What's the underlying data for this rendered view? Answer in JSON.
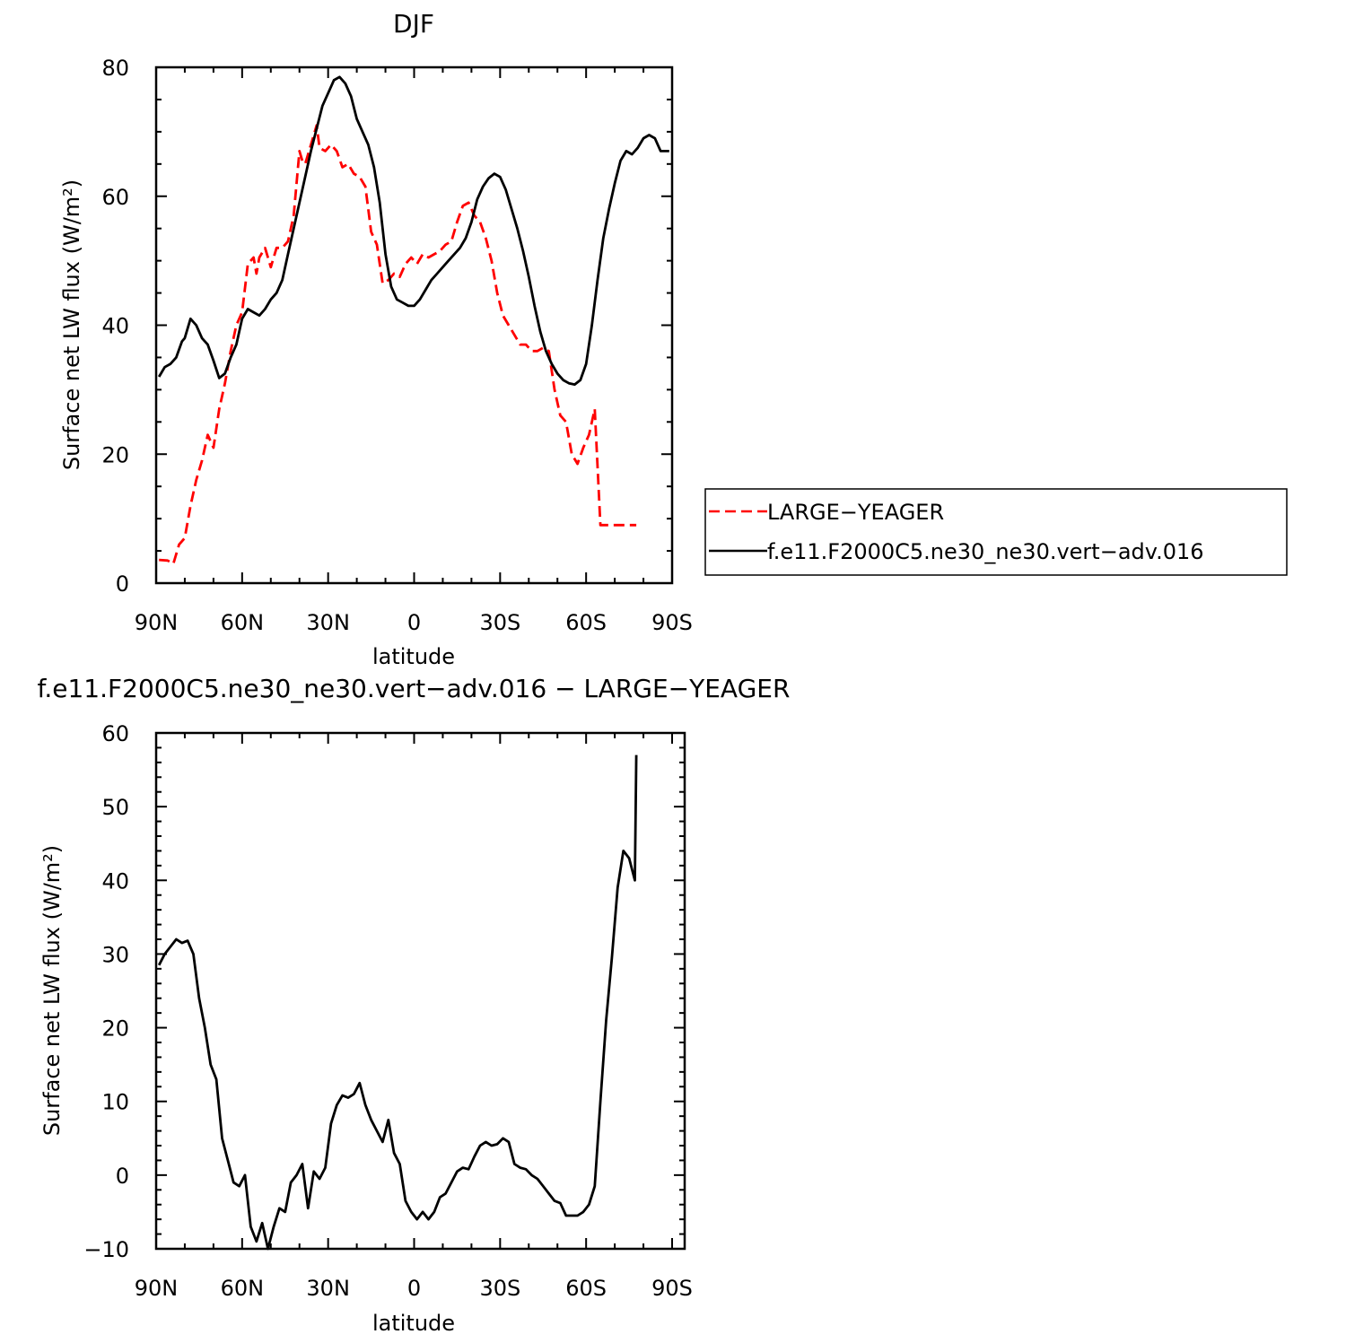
{
  "chart_data": [
    {
      "type": "line",
      "title": "DJF",
      "xlabel": "latitude",
      "ylabel": "Surface net LW flux (W/m²)",
      "xlim": [
        90,
        -90
      ],
      "ylim": [
        0,
        80
      ],
      "xticks": [
        90,
        60,
        30,
        0,
        -30,
        -60,
        -90
      ],
      "xtick_labels": [
        "90N",
        "60N",
        "30N",
        "0",
        "30S",
        "60S",
        "90S"
      ],
      "yticks": [
        0,
        20,
        40,
        60,
        80
      ],
      "ytick_labels": [
        "0",
        "20",
        "40",
        "60",
        "80"
      ],
      "legend_position": "right",
      "series": [
        {
          "name": "LARGE-YEAGER",
          "color": "#ff0000",
          "dash": "dashed",
          "x": [
            89,
            86,
            84,
            82,
            80,
            78,
            76,
            74,
            72,
            70,
            68,
            66,
            64,
            62,
            60,
            58,
            56,
            55,
            54,
            52,
            50,
            48,
            46,
            44,
            42,
            40,
            39,
            38,
            36,
            34,
            33,
            31,
            29,
            27,
            25,
            23,
            21,
            19,
            17,
            15,
            13,
            11,
            9,
            7,
            5,
            3,
            1,
            -1,
            -3,
            -5,
            -7,
            -9,
            -11,
            -13,
            -15,
            -17,
            -19,
            -21,
            -23,
            -25,
            -27,
            -29,
            -31,
            -33,
            -35,
            -37,
            -39,
            -41,
            -43,
            -45,
            -47,
            -49,
            -51,
            -53,
            -55,
            -57,
            -59,
            -61,
            -63,
            -65,
            -66,
            -67,
            -68,
            -69,
            -70,
            -71,
            -72,
            -73,
            -74,
            -75,
            -76,
            -77,
            -77.5
          ],
          "y": [
            3.6,
            3.5,
            3.0,
            6.0,
            7.0,
            12.0,
            16.0,
            19.0,
            23.0,
            21.0,
            27.0,
            31.0,
            36.0,
            40.0,
            42.0,
            49.5,
            50.5,
            48.0,
            50.5,
            52.0,
            49.0,
            52.0,
            52.0,
            53.0,
            57.0,
            67.0,
            65.5,
            65.0,
            68.0,
            71.0,
            67.5,
            67.0,
            68.0,
            67.0,
            64.5,
            65.0,
            63.5,
            63.0,
            61.5,
            54.5,
            52.5,
            46.5,
            47.0,
            48.0,
            47.5,
            49.5,
            50.5,
            49.5,
            51.0,
            50.5,
            51.0,
            51.5,
            52.5,
            53.0,
            56.0,
            58.5,
            59.0,
            57.0,
            56.0,
            53.5,
            50.0,
            45.0,
            41.5,
            40.0,
            38.5,
            37.0,
            37.0,
            36.0,
            36.0,
            36.5,
            36.0,
            30.0,
            26.0,
            25.0,
            20.0,
            18.5,
            21.0,
            23.0,
            27.0,
            9.0,
            9.0,
            9.0,
            9.0,
            9.0,
            9.0,
            9.0,
            9.0,
            9.0,
            9.0,
            9.0,
            9.0,
            9.0,
            9.0
          ]
        },
        {
          "name": "f.e11.F2000C5.ne30_ne30.vert-adv.016",
          "color": "#000000",
          "dash": "solid",
          "x": [
            89,
            87,
            85,
            83,
            81,
            80,
            78,
            76,
            74,
            72,
            70,
            68,
            66,
            64,
            62,
            60,
            58,
            56,
            54,
            52,
            50,
            48,
            46,
            44,
            42,
            40,
            38,
            36,
            34,
            32,
            30,
            28,
            26,
            24,
            22,
            20,
            18,
            16,
            14,
            12,
            10,
            8,
            6,
            4,
            2,
            0,
            -2,
            -4,
            -6,
            -8,
            -10,
            -12,
            -14,
            -16,
            -18,
            -20,
            -22,
            -24,
            -26,
            -28,
            -30,
            -32,
            -34,
            -36,
            -38,
            -40,
            -42,
            -44,
            -46,
            -48,
            -50,
            -52,
            -54,
            -56,
            -58,
            -60,
            -62,
            -64,
            -66,
            -68,
            -70,
            -72,
            -74,
            -76,
            -78,
            -80,
            -82,
            -84,
            -86,
            -88,
            -89
          ],
          "y": [
            32.0,
            33.5,
            34.0,
            35.0,
            37.5,
            38.0,
            41.0,
            40.0,
            38.0,
            37.0,
            34.5,
            31.8,
            32.5,
            35.0,
            37.0,
            41.0,
            42.5,
            42.0,
            41.5,
            42.5,
            44.0,
            45.0,
            47.0,
            51.0,
            55.0,
            59.0,
            63.0,
            67.0,
            70.5,
            74.0,
            76.0,
            78.0,
            78.5,
            77.5,
            75.5,
            72.0,
            70.0,
            68.0,
            64.5,
            59.0,
            51.0,
            46.0,
            44.0,
            43.5,
            43.0,
            43.0,
            44.0,
            45.5,
            47.0,
            48.0,
            49.0,
            50.0,
            51.0,
            52.0,
            53.5,
            56.0,
            59.5,
            61.5,
            62.8,
            63.5,
            63.0,
            61.0,
            58.0,
            55.0,
            51.5,
            47.5,
            43.0,
            39.0,
            36.0,
            34.0,
            32.5,
            31.5,
            31.0,
            30.8,
            31.5,
            34.0,
            40.0,
            47.0,
            53.5,
            58.0,
            62.0,
            65.5,
            67.0,
            66.5,
            67.5,
            69.0,
            69.5,
            69.0,
            67.0,
            67.0,
            67.0
          ]
        }
      ]
    },
    {
      "type": "line",
      "title": "f.e11.F2000C5.ne30_ne30.vert-adv.016 − LARGE−YEAGER",
      "xlabel": "latitude",
      "ylabel": "Surface net LW flux (W/m²)",
      "xlim": [
        90,
        -90
      ],
      "ylim": [
        -10,
        60
      ],
      "xticks": [
        90,
        60,
        30,
        0,
        -30,
        -60,
        -90
      ],
      "xtick_labels": [
        "90N",
        "60N",
        "30N",
        "0",
        "30S",
        "60S",
        "90S"
      ],
      "yticks": [
        -10,
        0,
        10,
        20,
        30,
        40,
        50,
        60
      ],
      "ytick_labels": [
        "−10",
        "0",
        "10",
        "20",
        "30",
        "40",
        "50",
        "60"
      ],
      "series": [
        {
          "color": "#000000",
          "dash": "solid",
          "x": [
            89,
            87,
            85,
            83,
            81,
            79,
            77,
            75,
            73,
            71,
            69,
            67,
            65,
            63,
            61,
            59,
            57,
            55,
            53,
            51,
            49,
            47,
            45,
            43,
            41,
            39,
            37,
            35,
            33,
            31,
            29,
            27,
            25,
            23,
            21,
            19,
            17,
            15,
            13,
            11,
            9,
            7,
            5,
            3,
            1,
            -1,
            -3,
            -5,
            -7,
            -9,
            -11,
            -13,
            -15,
            -17,
            -19,
            -21,
            -23,
            -25,
            -27,
            -29,
            -31,
            -33,
            -35,
            -37,
            -39,
            -41,
            -43,
            -45,
            -47,
            -49,
            -51,
            -53,
            -55,
            -57,
            -59,
            -61,
            -63,
            -65,
            -67,
            -69,
            -71,
            -73,
            -75,
            -77,
            -77.5
          ],
          "y": [
            28.5,
            30.0,
            31.0,
            32.0,
            31.5,
            31.8,
            30.0,
            24.0,
            20.0,
            15.0,
            13.0,
            5.0,
            2.0,
            -1.0,
            -1.5,
            0.0,
            -7.0,
            -9.0,
            -6.5,
            -10.0,
            -7.0,
            -4.5,
            -5.0,
            -1.0,
            0.0,
            1.5,
            -4.5,
            0.5,
            -0.5,
            1.0,
            7.0,
            9.5,
            10.8,
            10.5,
            11.0,
            12.5,
            9.5,
            7.5,
            6.0,
            4.5,
            7.5,
            3.0,
            1.5,
            -3.5,
            -5.0,
            -6.0,
            -5.0,
            -6.0,
            -5.0,
            -3.0,
            -2.5,
            -1.0,
            0.5,
            1.0,
            0.8,
            2.5,
            4.0,
            4.5,
            4.0,
            4.2,
            5.0,
            4.5,
            1.5,
            1.0,
            0.8,
            0.0,
            -0.5,
            -1.5,
            -2.5,
            -3.5,
            -3.8,
            -5.5,
            -5.5,
            -5.5,
            -5.0,
            -4.0,
            -1.5,
            10.0,
            21.0,
            29.5,
            39.0,
            44.0,
            43.0,
            40.0,
            57.0
          ]
        }
      ]
    }
  ],
  "legend": {
    "items": [
      {
        "label": "LARGE−YEAGER",
        "color": "#ff0000",
        "dash": "dashed"
      },
      {
        "label": "f.e11.F2000C5.ne30_ne30.vert−adv.016",
        "color": "#000000",
        "dash": "solid"
      }
    ]
  },
  "panel1": {
    "title": "DJF",
    "xlabel": "latitude",
    "ylabel": "Surface net LW flux (W/m²)"
  },
  "panel2": {
    "title": "f.e11.F2000C5.ne30_ne30.vert−adv.016 − LARGE−YEAGER",
    "xlabel": "latitude",
    "ylabel": "Surface net LW flux (W/m²)"
  }
}
